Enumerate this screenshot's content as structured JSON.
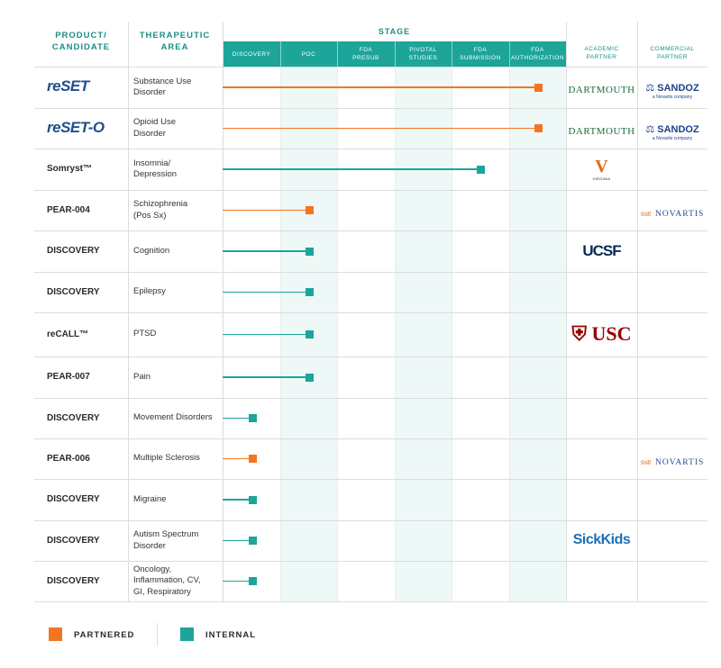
{
  "headers": {
    "product": "PRODUCT/\nCANDIDATE",
    "area": "THERAPEUTIC\nAREA",
    "stage": "STAGE",
    "academic": "ACADEMIC\nPARTNER",
    "commercial": "COMMERCIAL\nPARTNER"
  },
  "stages": [
    "DISCOVERY",
    "POC",
    "FDA\nPRESUB",
    "PIVOTAL\nSTUDIES",
    "FDA\nSUBMISSION",
    "FDA\nAUTHORIZATION"
  ],
  "rows": [
    {
      "product": "reSET",
      "logo": true,
      "area": "Substance Use\nDisorder",
      "type": "partnered",
      "stage_reached": 6,
      "academic": "DARTMOUTH",
      "commercial": "SANDOZ"
    },
    {
      "product": "reSET-O",
      "logo": true,
      "area": "Opioid Use\nDisorder",
      "type": "partnered",
      "stage_reached": 6,
      "academic": "DARTMOUTH",
      "commercial": "SANDOZ"
    },
    {
      "product": "Somryst™",
      "logo": false,
      "area": "Insomnia/\nDepression",
      "type": "internal",
      "stage_reached": 5,
      "academic": "VIRGINIA",
      "commercial": ""
    },
    {
      "product": "PEAR-004",
      "logo": false,
      "area": "Schizophrenia\n(Pos Sx)",
      "type": "partnered",
      "stage_reached": 2,
      "academic": "",
      "commercial": "NOVARTIS"
    },
    {
      "product": "DISCOVERY",
      "logo": false,
      "area": "Cognition",
      "type": "internal",
      "stage_reached": 2,
      "academic": "UCSF",
      "commercial": ""
    },
    {
      "product": "DISCOVERY",
      "logo": false,
      "area": "Epilepsy",
      "type": "internal",
      "stage_reached": 2,
      "academic": "",
      "commercial": ""
    },
    {
      "product": "reCALL™",
      "logo": false,
      "area": "PTSD",
      "type": "internal",
      "stage_reached": 2,
      "academic": "USC",
      "commercial": ""
    },
    {
      "product": "PEAR-007",
      "logo": false,
      "area": "Pain",
      "type": "internal",
      "stage_reached": 2,
      "academic": "",
      "commercial": ""
    },
    {
      "product": "DISCOVERY",
      "logo": false,
      "area": "Movement Disorders",
      "type": "internal",
      "stage_reached": 1,
      "academic": "",
      "commercial": ""
    },
    {
      "product": "PEAR-006",
      "logo": false,
      "area": "Multiple Sclerosis",
      "type": "partnered",
      "stage_reached": 1,
      "academic": "",
      "commercial": "NOVARTIS"
    },
    {
      "product": "DISCOVERY",
      "logo": false,
      "area": "Migraine",
      "type": "internal",
      "stage_reached": 1,
      "academic": "",
      "commercial": ""
    },
    {
      "product": "DISCOVERY",
      "logo": false,
      "area": "Autism Spectrum\nDisorder",
      "type": "internal",
      "stage_reached": 1,
      "academic": "SickKids",
      "commercial": ""
    },
    {
      "product": "DISCOVERY",
      "logo": false,
      "area": "Oncology,\nInflammation, CV,\nGI, Respiratory",
      "type": "internal",
      "stage_reached": 1,
      "academic": "",
      "commercial": ""
    }
  ],
  "logos": {
    "sandoz_sub": "a Novartis company",
    "virginia_sub": "VIRGINIA"
  },
  "legend": {
    "partnered": "PARTNERED",
    "internal": "INTERNAL"
  },
  "colors": {
    "partnered": "#f47521",
    "internal": "#1da59a",
    "header_text": "#1a8f86"
  }
}
